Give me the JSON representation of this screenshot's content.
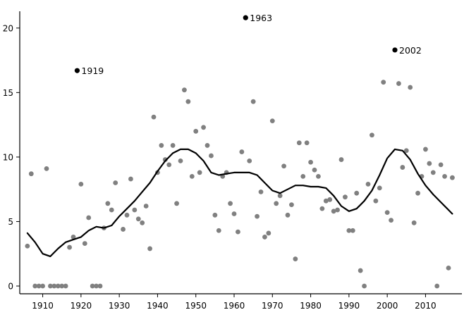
{
  "chart_data": {
    "type": "scatter",
    "title": "",
    "xlabel": "",
    "ylabel": "",
    "xlim": [
      1904,
      2019.5
    ],
    "ylim": [
      -0.6,
      21.3
    ],
    "xticks": [
      1910,
      1920,
      1930,
      1940,
      1950,
      1960,
      1970,
      1980,
      1990,
      2000,
      2010
    ],
    "yticks": [
      0,
      5,
      10,
      15,
      20
    ],
    "grid": false,
    "legend": "none",
    "colors": {
      "points": "#808080",
      "highlight": "#000000",
      "trend": "#000000",
      "axis": "#000000"
    },
    "points": [
      [
        1906,
        3.1
      ],
      [
        1907,
        8.7
      ],
      [
        1908,
        0
      ],
      [
        1909,
        0
      ],
      [
        1910,
        0
      ],
      [
        1911,
        9.1
      ],
      [
        1912,
        0
      ],
      [
        1913,
        0
      ],
      [
        1914,
        0
      ],
      [
        1915,
        0
      ],
      [
        1916,
        0
      ],
      [
        1917,
        3.0
      ],
      [
        1918,
        3.8
      ],
      [
        1920,
        7.9
      ],
      [
        1921,
        3.3
      ],
      [
        1922,
        5.3
      ],
      [
        1923,
        0
      ],
      [
        1924,
        0
      ],
      [
        1925,
        0
      ],
      [
        1926,
        4.5
      ],
      [
        1927,
        6.4
      ],
      [
        1928,
        5.9
      ],
      [
        1929,
        8.0
      ],
      [
        1931,
        4.4
      ],
      [
        1932,
        5.5
      ],
      [
        1933,
        8.3
      ],
      [
        1934,
        5.9
      ],
      [
        1935,
        5.2
      ],
      [
        1936,
        4.9
      ],
      [
        1937,
        6.2
      ],
      [
        1938,
        2.9
      ],
      [
        1939,
        13.1
      ],
      [
        1940,
        8.8
      ],
      [
        1941,
        10.9
      ],
      [
        1942,
        9.8
      ],
      [
        1943,
        9.4
      ],
      [
        1944,
        10.9
      ],
      [
        1945,
        6.4
      ],
      [
        1946,
        9.7
      ],
      [
        1947,
        15.2
      ],
      [
        1948,
        14.3
      ],
      [
        1949,
        8.5
      ],
      [
        1950,
        12.0
      ],
      [
        1951,
        8.8
      ],
      [
        1952,
        12.3
      ],
      [
        1953,
        10.9
      ],
      [
        1954,
        10.1
      ],
      [
        1955,
        5.5
      ],
      [
        1956,
        4.3
      ],
      [
        1957,
        8.5
      ],
      [
        1958,
        8.8
      ],
      [
        1959,
        6.4
      ],
      [
        1960,
        5.6
      ],
      [
        1961,
        4.2
      ],
      [
        1962,
        10.4
      ],
      [
        1964,
        9.7
      ],
      [
        1965,
        14.3
      ],
      [
        1966,
        5.4
      ],
      [
        1967,
        7.3
      ],
      [
        1968,
        3.8
      ],
      [
        1969,
        4.1
      ],
      [
        1970,
        12.8
      ],
      [
        1971,
        6.4
      ],
      [
        1972,
        7.0
      ],
      [
        1973,
        9.3
      ],
      [
        1974,
        5.5
      ],
      [
        1975,
        6.3
      ],
      [
        1976,
        2.1
      ],
      [
        1977,
        11.1
      ],
      [
        1978,
        8.5
      ],
      [
        1979,
        11.1
      ],
      [
        1980,
        9.6
      ],
      [
        1981,
        9.0
      ],
      [
        1982,
        8.5
      ],
      [
        1983,
        6.0
      ],
      [
        1984,
        6.6
      ],
      [
        1985,
        6.7
      ],
      [
        1986,
        5.8
      ],
      [
        1987,
        5.9
      ],
      [
        1988,
        9.8
      ],
      [
        1989,
        6.9
      ],
      [
        1990,
        4.3
      ],
      [
        1991,
        4.3
      ],
      [
        1992,
        7.2
      ],
      [
        1993,
        1.2
      ],
      [
        1994,
        0
      ],
      [
        1995,
        7.9
      ],
      [
        1996,
        11.7
      ],
      [
        1997,
        6.6
      ],
      [
        1998,
        7.6
      ],
      [
        1999,
        15.8
      ],
      [
        2000,
        5.7
      ],
      [
        2001,
        5.1
      ],
      [
        2003,
        15.7
      ],
      [
        2004,
        9.2
      ],
      [
        2005,
        10.5
      ],
      [
        2006,
        15.4
      ],
      [
        2007,
        4.9
      ],
      [
        2008,
        7.2
      ],
      [
        2009,
        8.5
      ],
      [
        2010,
        10.6
      ],
      [
        2011,
        9.5
      ],
      [
        2012,
        8.8
      ],
      [
        2013,
        0
      ],
      [
        2014,
        9.4
      ],
      [
        2015,
        8.5
      ],
      [
        2016,
        1.4
      ],
      [
        2017,
        8.4
      ]
    ],
    "highlighted": [
      {
        "x": 1919,
        "y": 16.7,
        "label": "1919"
      },
      {
        "x": 1963,
        "y": 20.8,
        "label": "1963"
      },
      {
        "x": 2002,
        "y": 18.3,
        "label": "2002"
      }
    ],
    "trend": [
      [
        1906,
        4.1
      ],
      [
        1908,
        3.4
      ],
      [
        1910,
        2.5
      ],
      [
        1912,
        2.3
      ],
      [
        1914,
        2.9
      ],
      [
        1916,
        3.4
      ],
      [
        1918,
        3.6
      ],
      [
        1920,
        3.8
      ],
      [
        1922,
        4.3
      ],
      [
        1924,
        4.6
      ],
      [
        1926,
        4.5
      ],
      [
        1928,
        4.7
      ],
      [
        1930,
        5.4
      ],
      [
        1932,
        6.0
      ],
      [
        1934,
        6.6
      ],
      [
        1936,
        7.3
      ],
      [
        1938,
        8.0
      ],
      [
        1940,
        8.9
      ],
      [
        1942,
        9.7
      ],
      [
        1944,
        10.3
      ],
      [
        1946,
        10.6
      ],
      [
        1948,
        10.6
      ],
      [
        1950,
        10.3
      ],
      [
        1952,
        9.7
      ],
      [
        1954,
        8.8
      ],
      [
        1956,
        8.6
      ],
      [
        1958,
        8.7
      ],
      [
        1960,
        8.8
      ],
      [
        1962,
        8.8
      ],
      [
        1964,
        8.8
      ],
      [
        1966,
        8.6
      ],
      [
        1968,
        8.0
      ],
      [
        1970,
        7.4
      ],
      [
        1972,
        7.2
      ],
      [
        1974,
        7.5
      ],
      [
        1976,
        7.8
      ],
      [
        1978,
        7.8
      ],
      [
        1980,
        7.7
      ],
      [
        1982,
        7.7
      ],
      [
        1984,
        7.6
      ],
      [
        1986,
        7.0
      ],
      [
        1988,
        6.2
      ],
      [
        1990,
        5.8
      ],
      [
        1992,
        6.0
      ],
      [
        1994,
        6.6
      ],
      [
        1996,
        7.4
      ],
      [
        1998,
        8.6
      ],
      [
        2000,
        9.9
      ],
      [
        2002,
        10.6
      ],
      [
        2004,
        10.5
      ],
      [
        2006,
        9.8
      ],
      [
        2008,
        8.7
      ],
      [
        2010,
        7.8
      ],
      [
        2012,
        7.1
      ],
      [
        2014,
        6.5
      ],
      [
        2016,
        5.9
      ],
      [
        2017,
        5.6
      ]
    ]
  }
}
